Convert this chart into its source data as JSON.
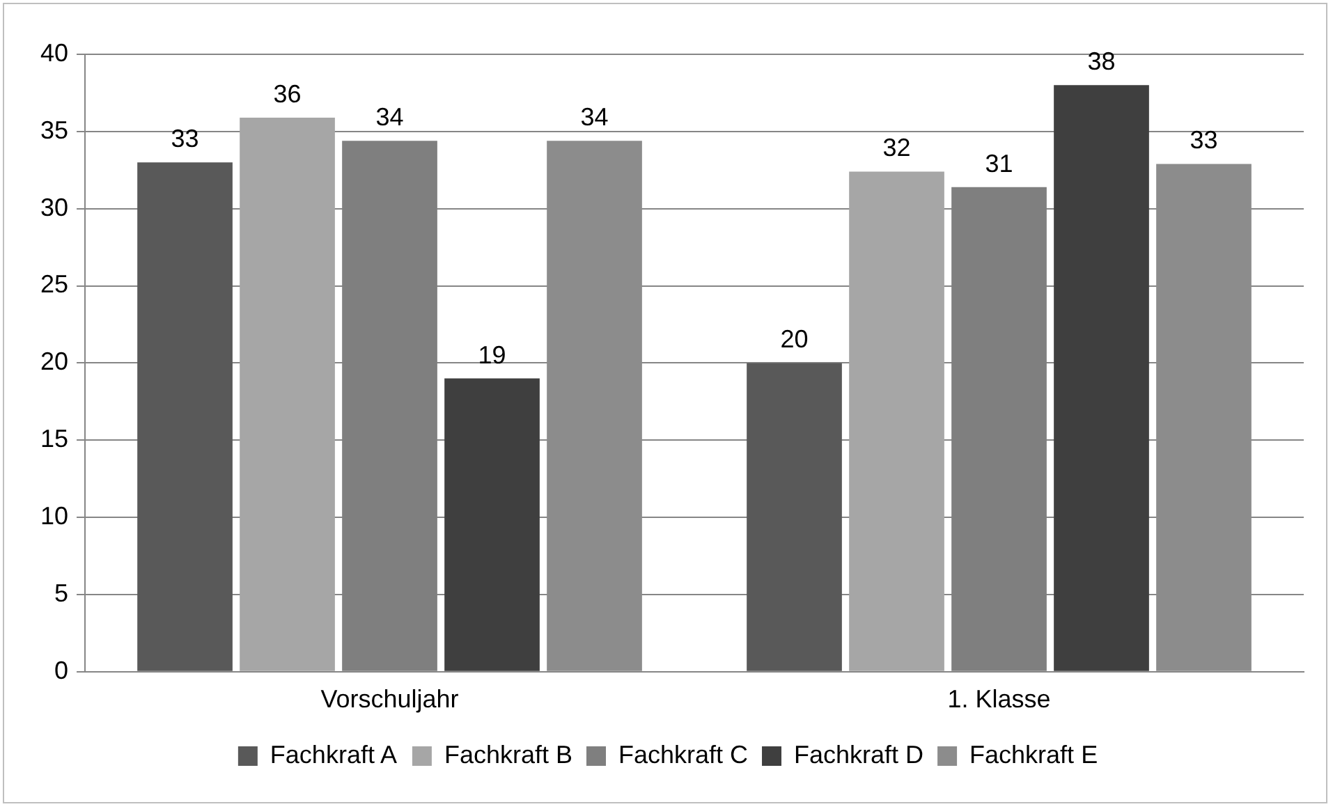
{
  "chart_data": {
    "type": "bar",
    "categories": [
      "Vorschuljahr",
      "1. Klasse"
    ],
    "series": [
      {
        "name": "Fachkraft A",
        "color": "#595959",
        "values": [
          33,
          20
        ],
        "value_labels": [
          "33",
          "20"
        ]
      },
      {
        "name": "Fachkraft B",
        "color": "#a6a6a6",
        "values": [
          35.9,
          32.4
        ],
        "value_labels": [
          "36",
          "32"
        ]
      },
      {
        "name": "Fachkraft C",
        "color": "#7f7f7f",
        "values": [
          34.4,
          31.4
        ],
        "value_labels": [
          "34",
          "31"
        ]
      },
      {
        "name": "Fachkraft D",
        "color": "#3f3f3f",
        "values": [
          19,
          38
        ],
        "value_labels": [
          "19",
          "38"
        ]
      },
      {
        "name": "Fachkraft E",
        "color": "#8c8c8c",
        "values": [
          34.4,
          32.9
        ],
        "value_labels": [
          "34",
          "33"
        ]
      }
    ],
    "ylim": [
      0,
      40
    ],
    "yticks": [
      0,
      5,
      10,
      15,
      20,
      25,
      30,
      35,
      40
    ],
    "grid": "y",
    "legend": "bottom"
  }
}
